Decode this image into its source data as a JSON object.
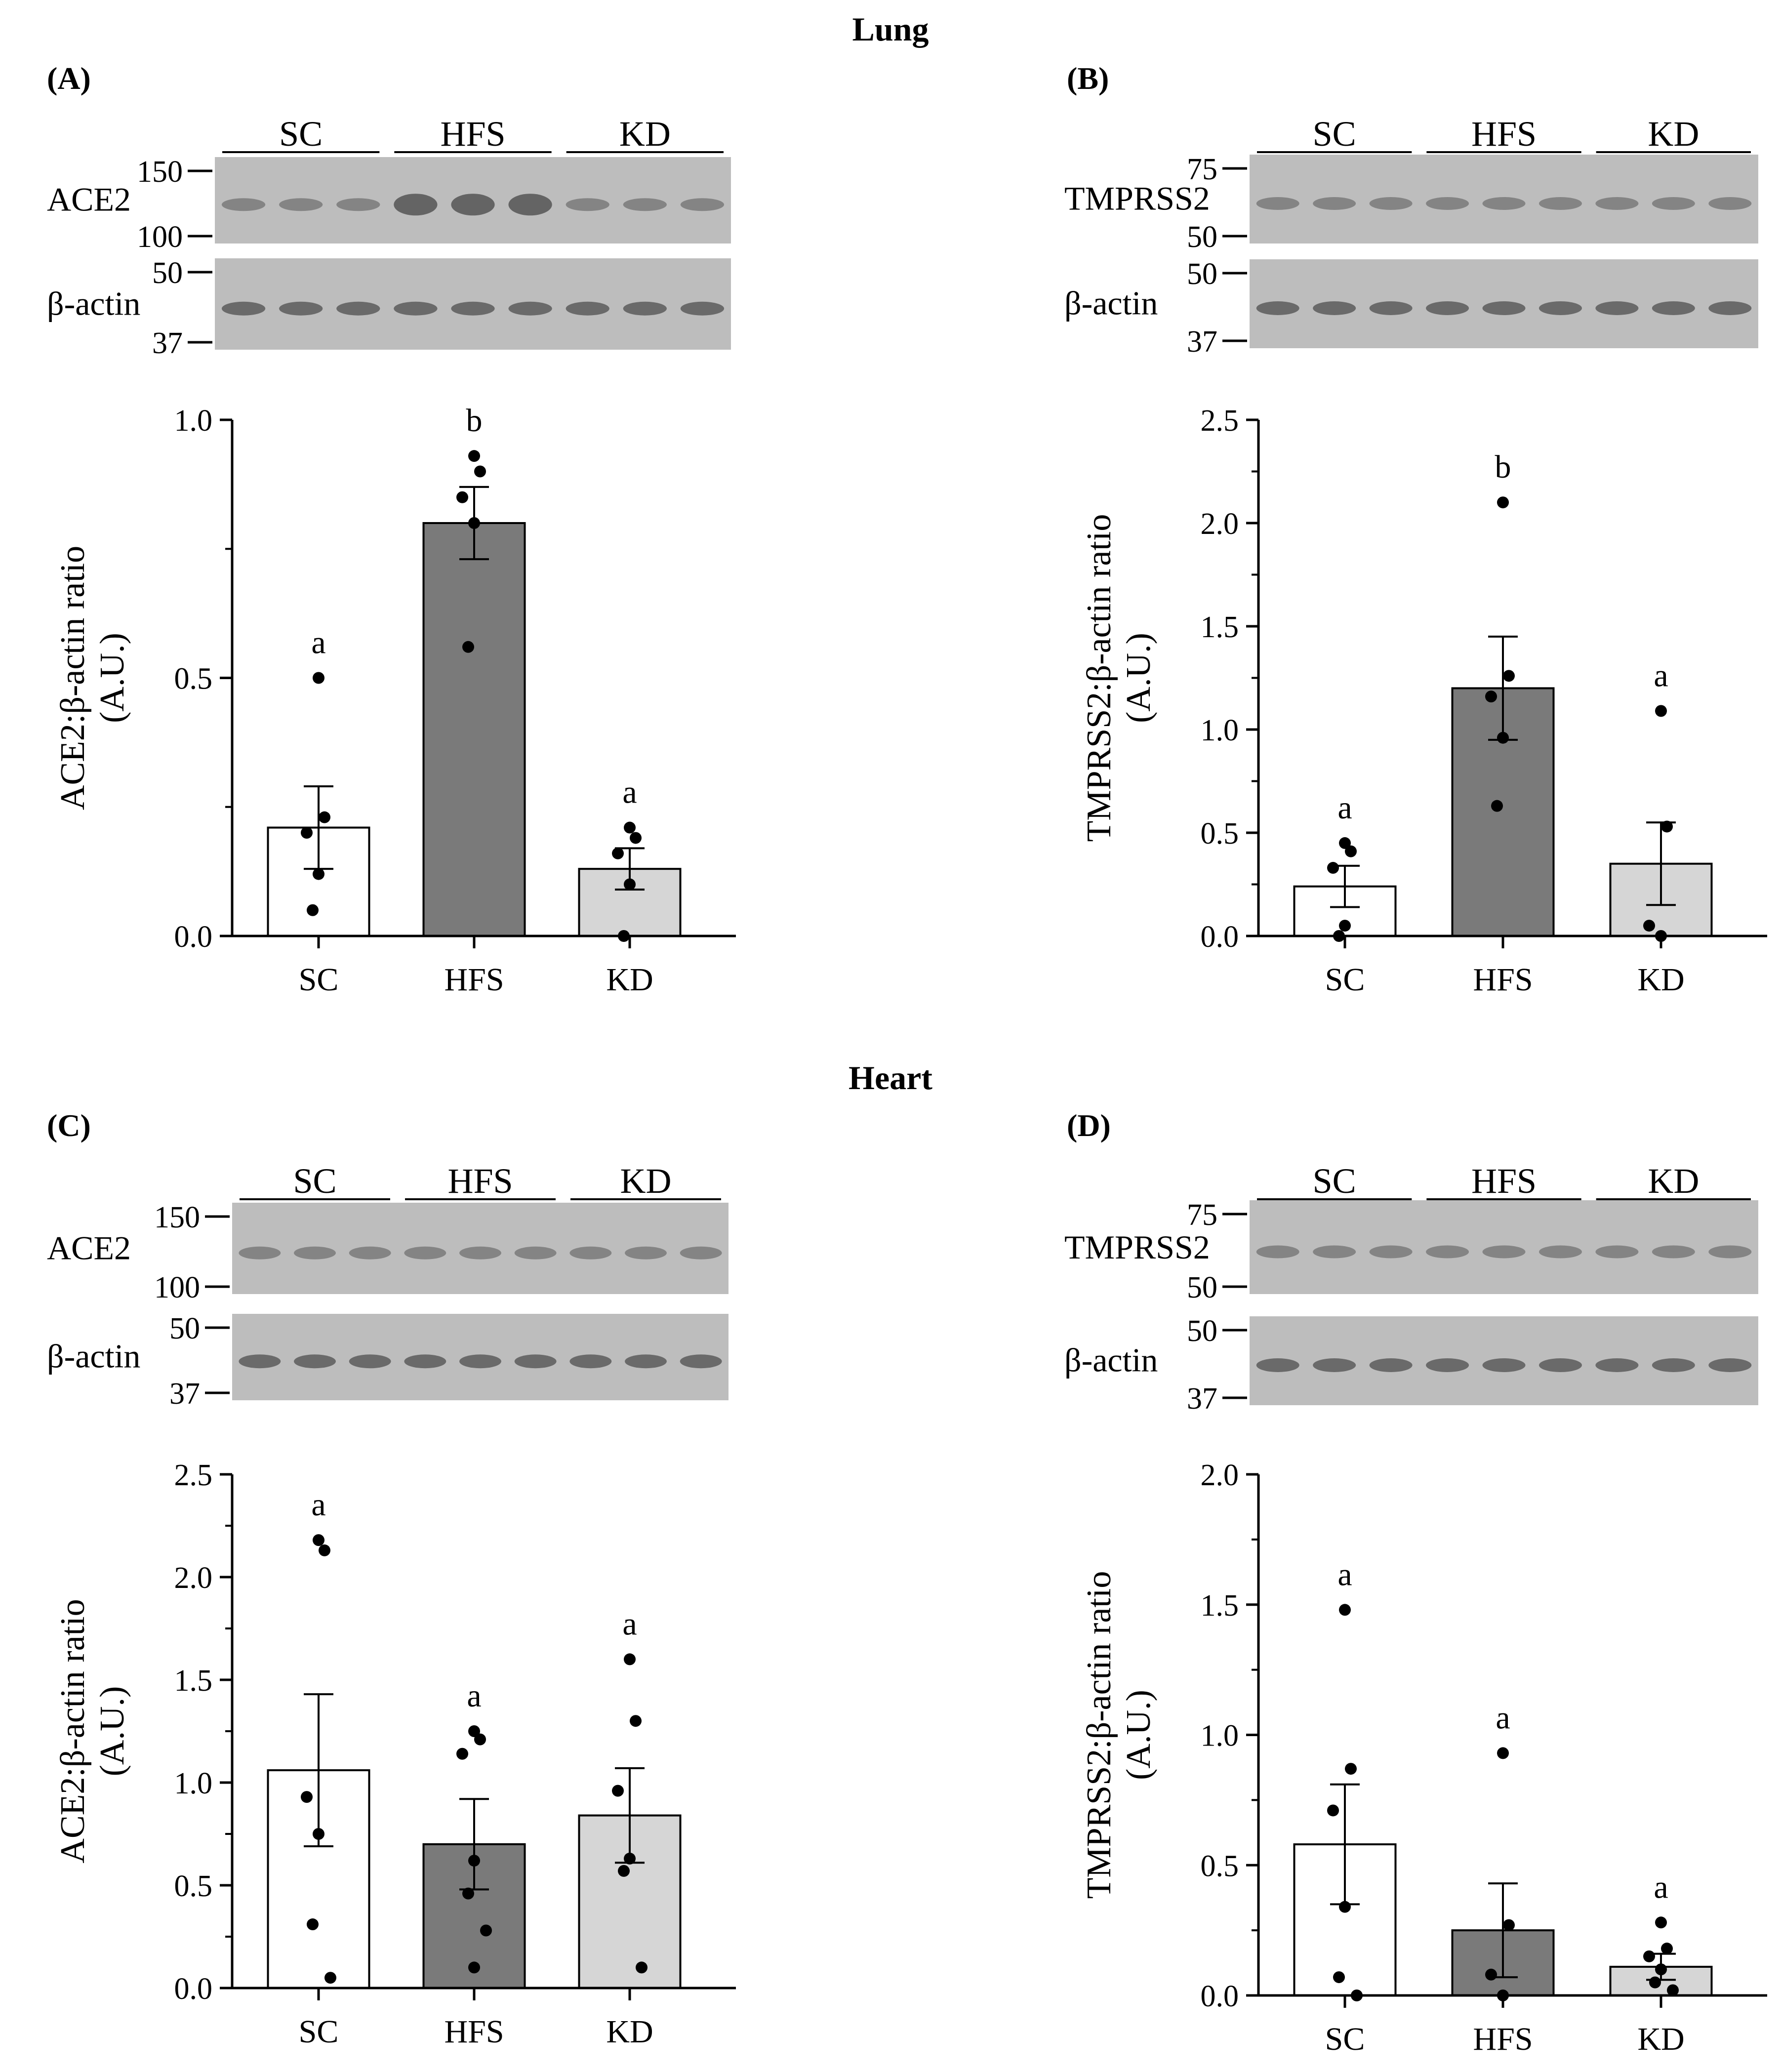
{
  "sections": [
    {
      "title": "Lung"
    },
    {
      "title": "Heart"
    }
  ],
  "colors": {
    "SC": "#ffffff",
    "HFS": "#7a7a7a",
    "KD": "#d6d6d6",
    "blot_bg": "#bdbdbd",
    "band": "#555555"
  },
  "panels": [
    {
      "panel_label": "(A)",
      "groups": [
        "SC",
        "HFS",
        "KD"
      ],
      "blot": {
        "protein": "ACE2",
        "protein_markers": [
          "150",
          "100"
        ],
        "loading": "β-actin",
        "loading_markers": [
          "50",
          "37"
        ]
      },
      "chart_data": {
        "type": "bar",
        "categories": [
          "SC",
          "HFS",
          "KD"
        ],
        "values": [
          0.21,
          0.8,
          0.13
        ],
        "sem": [
          0.08,
          0.07,
          0.04
        ],
        "points": [
          [
            0.5,
            0.23,
            0.2,
            0.12,
            0.05
          ],
          [
            0.93,
            0.9,
            0.85,
            0.8,
            0.56
          ],
          [
            0.21,
            0.19,
            0.16,
            0.1,
            0.0
          ]
        ],
        "letters": [
          "a",
          "b",
          "a"
        ],
        "ylabel": "ACE2:β-actin ratio (A.U.)",
        "ylim": [
          0,
          1.0
        ],
        "yticks": [
          "0.0",
          "0.5",
          "1.0"
        ],
        "xlabel": ""
      }
    },
    {
      "panel_label": "(B)",
      "groups": [
        "SC",
        "HFS",
        "KD"
      ],
      "blot": {
        "protein": "TMPRSS2",
        "protein_markers": [
          "75",
          "50"
        ],
        "loading": "β-actin",
        "loading_markers": [
          "50",
          "37"
        ]
      },
      "chart_data": {
        "type": "bar",
        "categories": [
          "SC",
          "HFS",
          "KD"
        ],
        "values": [
          0.24,
          1.2,
          0.35
        ],
        "sem": [
          0.1,
          0.25,
          0.2
        ],
        "points": [
          [
            0.45,
            0.41,
            0.33,
            0.05,
            0.0
          ],
          [
            2.1,
            1.26,
            1.16,
            0.96,
            0.63
          ],
          [
            1.09,
            0.53,
            0.05,
            0.0
          ]
        ],
        "letters": [
          "a",
          "b",
          "a"
        ],
        "ylabel": "TMPRSS2:β-actin ratio (A.U.)",
        "ylim": [
          0,
          2.5
        ],
        "yticks": [
          "0.0",
          "0.5",
          "1.0",
          "1.5",
          "2.0",
          "2.5"
        ],
        "xlabel": ""
      }
    },
    {
      "panel_label": "(C)",
      "groups": [
        "SC",
        "HFS",
        "KD"
      ],
      "blot": {
        "protein": "ACE2",
        "protein_markers": [
          "150",
          "100"
        ],
        "loading": "β-actin",
        "loading_markers": [
          "50",
          "37"
        ]
      },
      "chart_data": {
        "type": "bar",
        "categories": [
          "SC",
          "HFS",
          "KD"
        ],
        "values": [
          1.06,
          0.7,
          0.84
        ],
        "sem": [
          0.37,
          0.22,
          0.23
        ],
        "points": [
          [
            2.18,
            2.13,
            0.93,
            0.75,
            0.31,
            0.05
          ],
          [
            1.25,
            1.21,
            1.14,
            0.62,
            0.46,
            0.28,
            0.1
          ],
          [
            1.6,
            1.3,
            0.96,
            0.63,
            0.57,
            0.1
          ]
        ],
        "letters": [
          "a",
          "a",
          "a"
        ],
        "ylabel": "ACE2:β-actin ratio (A.U.)",
        "ylim": [
          0,
          2.5
        ],
        "yticks": [
          "0.0",
          "0.5",
          "1.0",
          "1.5",
          "2.0",
          "2.5"
        ],
        "xlabel": ""
      }
    },
    {
      "panel_label": "(D)",
      "groups": [
        "SC",
        "HFS",
        "KD"
      ],
      "blot": {
        "protein": "TMPRSS2",
        "protein_markers": [
          "75",
          "50"
        ],
        "loading": "β-actin",
        "loading_markers": [
          "50",
          "37"
        ]
      },
      "chart_data": {
        "type": "bar",
        "categories": [
          "SC",
          "HFS",
          "KD"
        ],
        "values": [
          0.58,
          0.25,
          0.11
        ],
        "sem": [
          0.23,
          0.18,
          0.05
        ],
        "points": [
          [
            1.48,
            0.87,
            0.71,
            0.34,
            0.07,
            0.0
          ],
          [
            0.93,
            0.27,
            0.08,
            0.0
          ],
          [
            0.28,
            0.18,
            0.15,
            0.1,
            0.05,
            0.02
          ]
        ],
        "letters": [
          "a",
          "a",
          "a"
        ],
        "ylabel": "TMPRSS2:β-actin ratio (A.U.)",
        "ylim": [
          0,
          2.0
        ],
        "yticks": [
          "0.0",
          "0.5",
          "1.0",
          "1.5",
          "2.0"
        ],
        "xlabel": ""
      }
    }
  ]
}
